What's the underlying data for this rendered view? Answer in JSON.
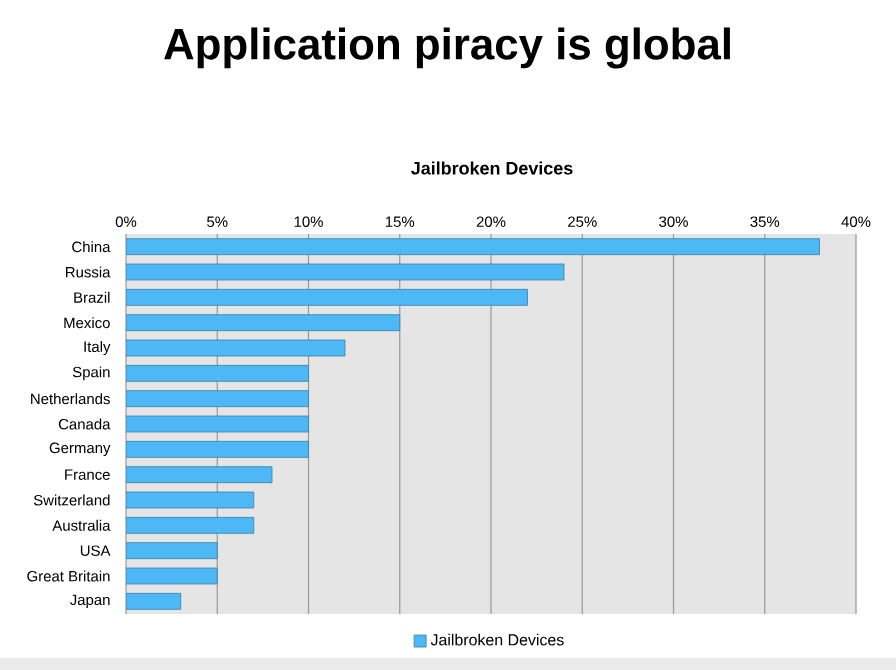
{
  "chart_data": {
    "type": "bar",
    "orientation": "horizontal",
    "title": "Application piracy is global",
    "subtitle": "Jailbroken Devices",
    "categories": [
      "China",
      "Russia",
      "Brazil",
      "Mexico",
      "Italy",
      "Spain",
      "Netherlands",
      "Canada",
      "Germany",
      "France",
      "Switzerland",
      "Australia",
      "USA",
      "Great Britain",
      "Japan"
    ],
    "series": [
      {
        "name": "Jailbroken Devices",
        "color": "#4db8f5",
        "values": [
          38,
          24,
          22,
          15,
          12,
          10,
          10,
          10,
          10,
          8,
          7,
          7,
          5,
          5,
          3
        ]
      }
    ],
    "xlim": [
      0,
      40
    ],
    "xticks": [
      {
        "value": 0,
        "label": "0%"
      },
      {
        "value": 5,
        "label": "5%"
      },
      {
        "value": 10,
        "label": "10%"
      },
      {
        "value": 15,
        "label": "15%"
      },
      {
        "value": 20,
        "label": "20%"
      },
      {
        "value": 25,
        "label": "25%"
      },
      {
        "value": 30,
        "label": "30%"
      },
      {
        "value": 35,
        "label": "35%"
      },
      {
        "value": 40,
        "label": "40%"
      }
    ],
    "grid": "x",
    "legend": "bottom"
  }
}
